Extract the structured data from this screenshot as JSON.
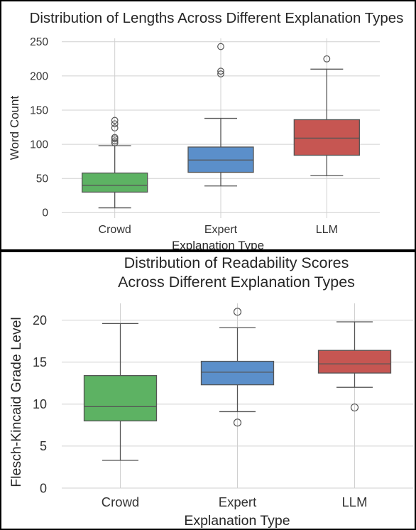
{
  "chart_data": [
    {
      "type": "box",
      "title": "Distribution of Lengths Across Different Explanation Types",
      "xlabel": "Explanation Type",
      "ylabel": "Word Count",
      "ylim": [
        -8,
        255
      ],
      "yticks": [
        0,
        50,
        100,
        150,
        200,
        250
      ],
      "grid": true,
      "categories": [
        "Crowd",
        "Expert",
        "LLM"
      ],
      "series": [
        {
          "category": "Crowd",
          "color": "#5db263",
          "whisker_low": 7,
          "q1": 30,
          "median": 40,
          "q3": 58,
          "whisker_high": 98,
          "outliers": [
            102,
            105,
            108,
            110,
            124,
            130,
            135
          ]
        },
        {
          "category": "Expert",
          "color": "#5b8fca",
          "whisker_low": 39,
          "q1": 59,
          "median": 77,
          "q3": 96,
          "whisker_high": 138,
          "outliers": [
            203,
            207,
            243
          ]
        },
        {
          "category": "LLM",
          "color": "#c65652",
          "whisker_low": 54,
          "q1": 84,
          "median": 109,
          "q3": 136,
          "whisker_high": 210,
          "outliers": [
            225
          ]
        }
      ]
    },
    {
      "type": "box",
      "title_lines": [
        "Distribution of Readability Scores",
        "Across Different Explanation Types"
      ],
      "xlabel": "Explanation Type",
      "ylabel": "Flesch-Kincaid Grade Level",
      "ylim": [
        0,
        22
      ],
      "yticks": [
        0,
        5,
        10,
        15,
        20
      ],
      "grid": true,
      "categories": [
        "Crowd",
        "Expert",
        "LLM"
      ],
      "series": [
        {
          "category": "Crowd",
          "color": "#5db263",
          "whisker_low": 3.3,
          "q1": 8.0,
          "median": 9.7,
          "q3": 13.4,
          "whisker_high": 19.6,
          "outliers": []
        },
        {
          "category": "Expert",
          "color": "#5b8fca",
          "whisker_low": 9.1,
          "q1": 12.3,
          "median": 13.8,
          "q3": 15.1,
          "whisker_high": 19.1,
          "outliers": [
            7.8,
            21.0
          ]
        },
        {
          "category": "LLM",
          "color": "#c65652",
          "whisker_low": 12.0,
          "q1": 13.7,
          "median": 14.8,
          "q3": 16.4,
          "whisker_high": 19.8,
          "outliers": [
            9.6
          ]
        }
      ]
    }
  ]
}
